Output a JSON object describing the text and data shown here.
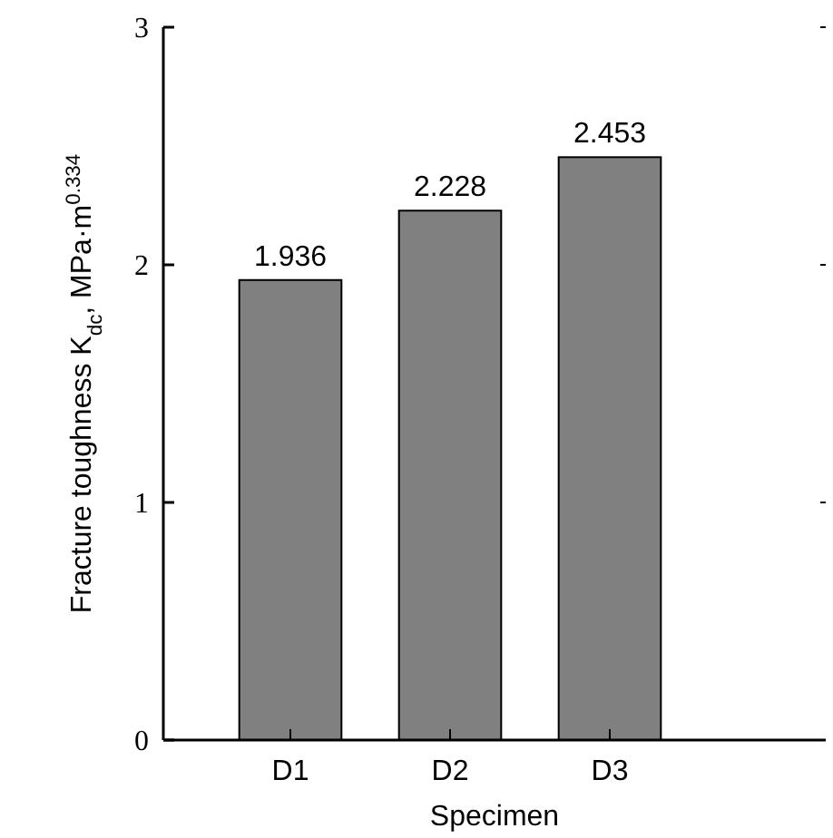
{
  "chart_data": {
    "type": "bar",
    "xlabel": "Specimen",
    "ylabel": "Fracture toughness  K$_{dc}$, MPa·m$^{0.334}$",
    "categories": [
      "D1",
      "D2",
      "D3"
    ],
    "values": [
      1.936,
      2.228,
      2.453
    ],
    "color": "#808080",
    "ylim": [
      0,
      3
    ],
    "yticks": [
      0,
      1,
      2,
      3
    ],
    "data_labels": true,
    "grid": false
  }
}
